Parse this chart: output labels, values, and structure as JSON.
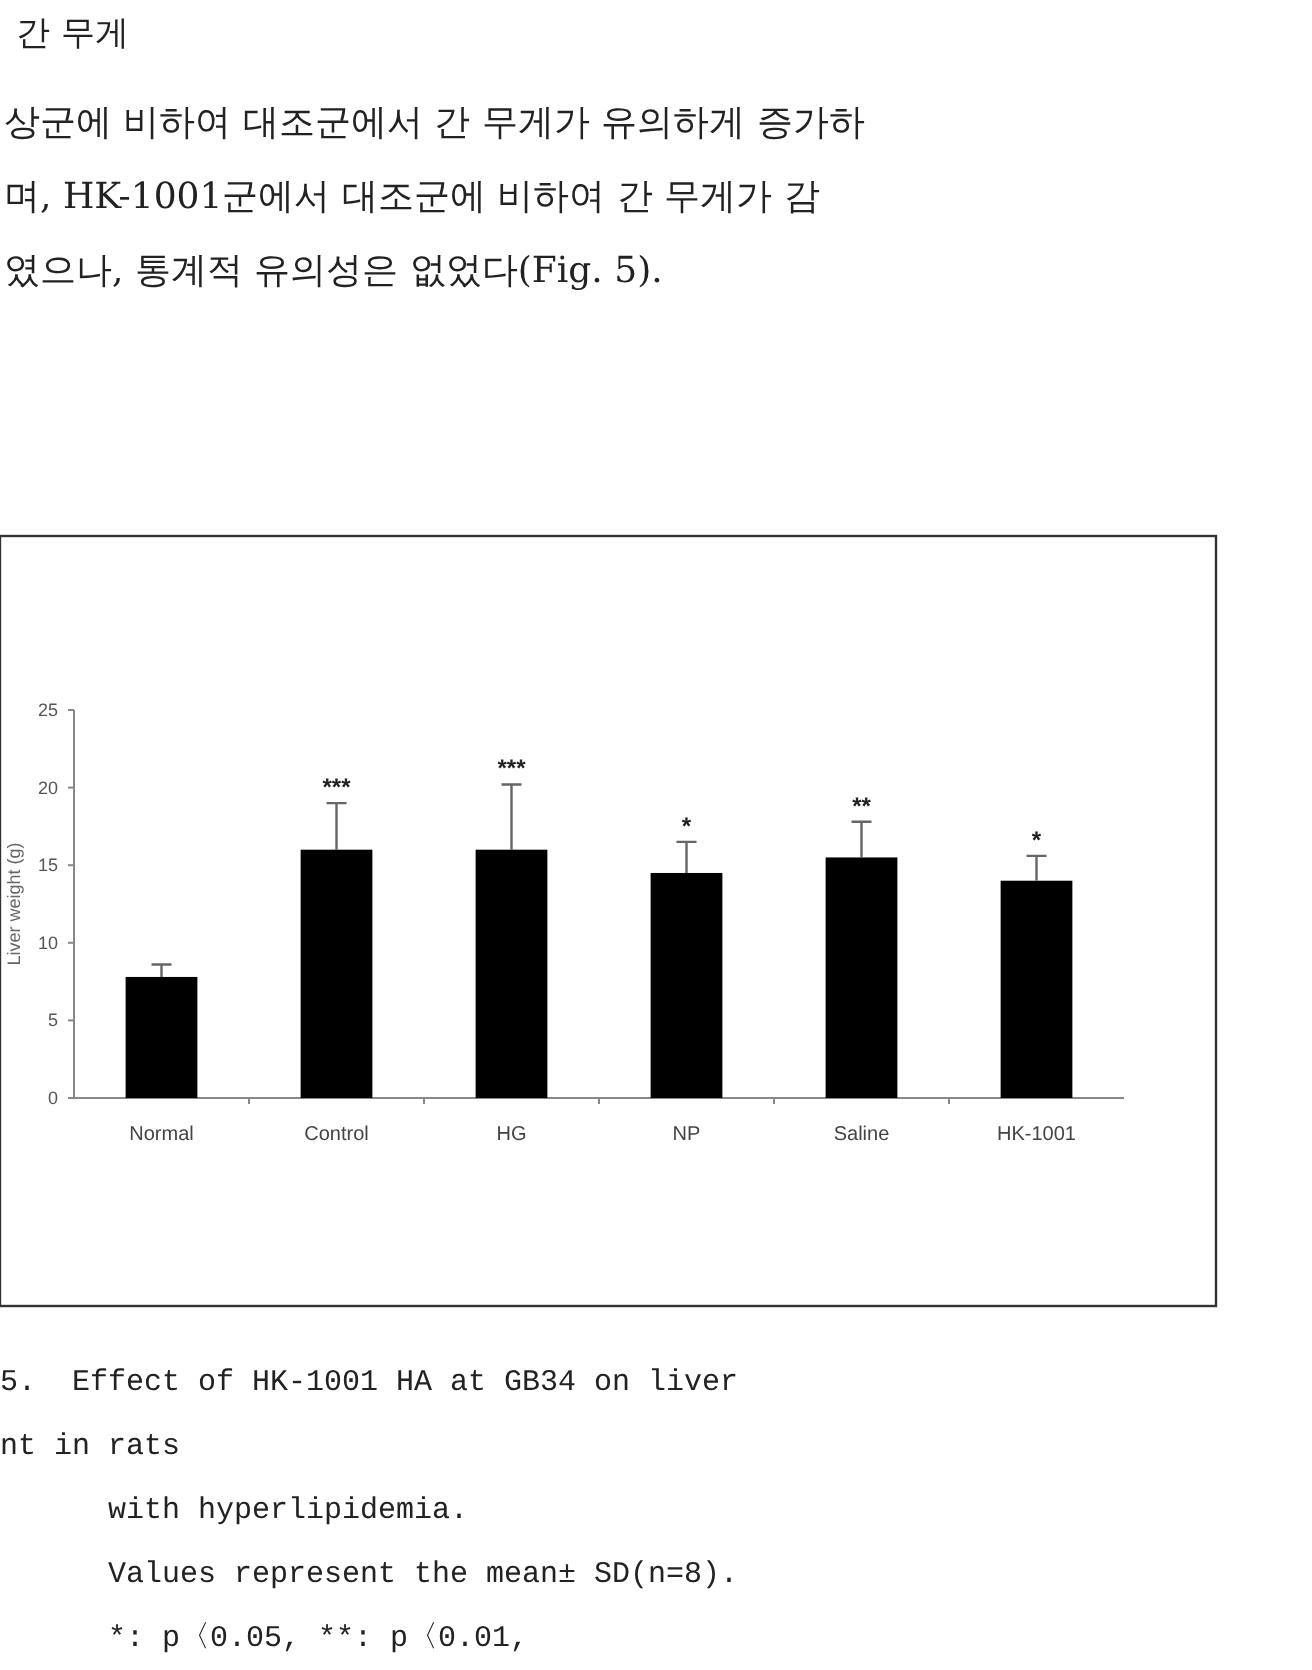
{
  "chart_data": {
    "type": "bar",
    "title": "간 무게",
    "subtitle": "상군에 비하여 대조군에서 간 무게가 유의하게 증가하\n며, HK-1001군에서 대조군에 비하여 간 무게가 감\n였으나, 통계적 유의성은 없었다(Fig. 5).",
    "ylabel": "Liver weight (g)",
    "categories": [
      "Normal",
      "Control",
      "HG",
      "NP",
      "Saline",
      "HK-1001"
    ],
    "values": [
      7.8,
      16,
      16,
      14.5,
      15.5,
      14
    ],
    "errors": [
      [
        7.8,
        8.6
      ],
      [
        16,
        19
      ],
      [
        16,
        20.2
      ],
      [
        14.5,
        16.5
      ],
      [
        15.5,
        17.8
      ],
      [
        14,
        15.6
      ]
    ],
    "color": "#000000",
    "ylim": [
      0,
      25
    ],
    "yticks": [
      0,
      5,
      10,
      15,
      20,
      25
    ],
    "annotations": [
      {
        "text": "***",
        "x": "Control",
        "y": 19
      },
      {
        "text": "***",
        "x": "HG",
        "y": 20.2
      },
      {
        "text": "*",
        "x": "NP",
        "y": 16.5
      },
      {
        "text": "**",
        "x": "Saline",
        "y": 17.8
      },
      {
        "text": "*",
        "x": "HK-1001",
        "y": 15.6
      },
      "5.  Effect of HK-1001 HA at GB34 on liver",
      "nt in rats",
      "      with hyperlipidemia.",
      "      Values represent the mean± SD(n=8).",
      "      *: p〈0.05, **: p〈0.01,"
    ]
  }
}
